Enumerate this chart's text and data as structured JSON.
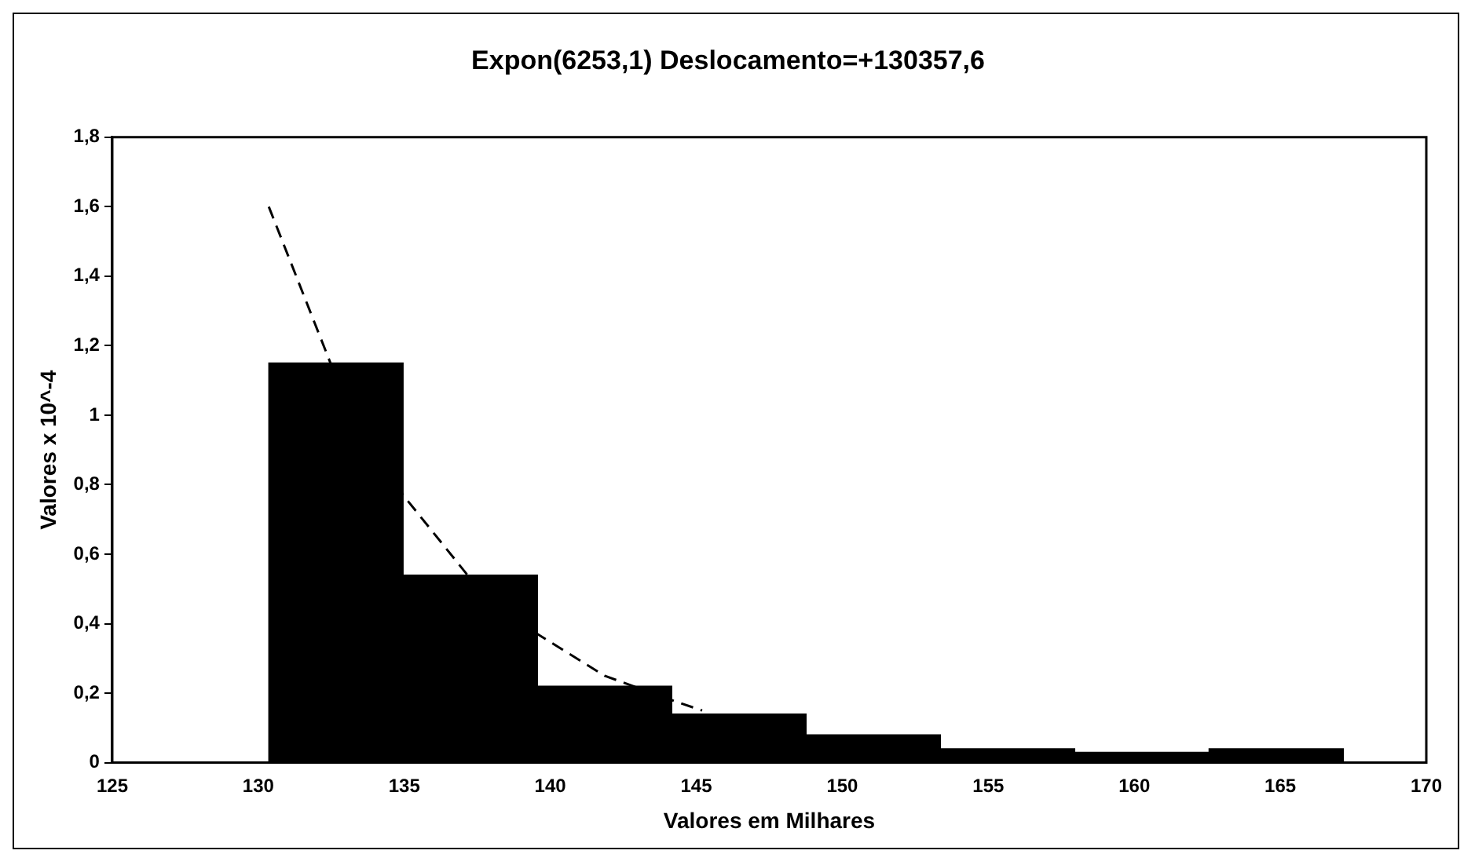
{
  "chart_data": {
    "type": "histogram",
    "title": "Expon(6253,1) Deslocamento=+130357,6",
    "xlabel": "Valores em Milhares",
    "ylabel": "Valores x 10^-4",
    "bins": [
      130.36,
      134.96,
      139.56,
      144.16,
      148.76,
      153.36,
      157.96,
      162.56,
      167.16
    ],
    "values": [
      1.15,
      0.54,
      0.22,
      0.14,
      0.08,
      0.04,
      0.03,
      0.04
    ],
    "color": "#000000",
    "series": [
      {
        "type": "line",
        "color": "#000000",
        "line_style": "dashed",
        "marker": "none",
        "x": [
          130.36,
          132.66,
          134.96,
          137.26,
          139.56,
          141.86,
          144.16,
          145.2
        ],
        "values": [
          1.6,
          1.11,
          0.77,
          0.53,
          0.37,
          0.25,
          0.18,
          0.15
        ]
      }
    ],
    "xlim": [
      125,
      170
    ],
    "xticks": [
      125,
      130,
      135,
      140,
      145,
      150,
      155,
      160,
      165,
      170
    ],
    "ylim": [
      0,
      1.8
    ],
    "yticks": [
      0,
      {
        "value": 0.2,
        "label": "0,2"
      },
      {
        "value": 0.4,
        "label": "0,4"
      },
      {
        "value": 0.6,
        "label": "0,6"
      },
      {
        "value": 0.8,
        "label": "0,8"
      },
      1,
      {
        "value": 1.2,
        "label": "1,2"
      },
      {
        "value": 1.4,
        "label": "1,4"
      },
      {
        "value": 1.6,
        "label": "1,6"
      },
      {
        "value": 1.8,
        "label": "1,8"
      }
    ],
    "grid": false,
    "legend": false
  }
}
